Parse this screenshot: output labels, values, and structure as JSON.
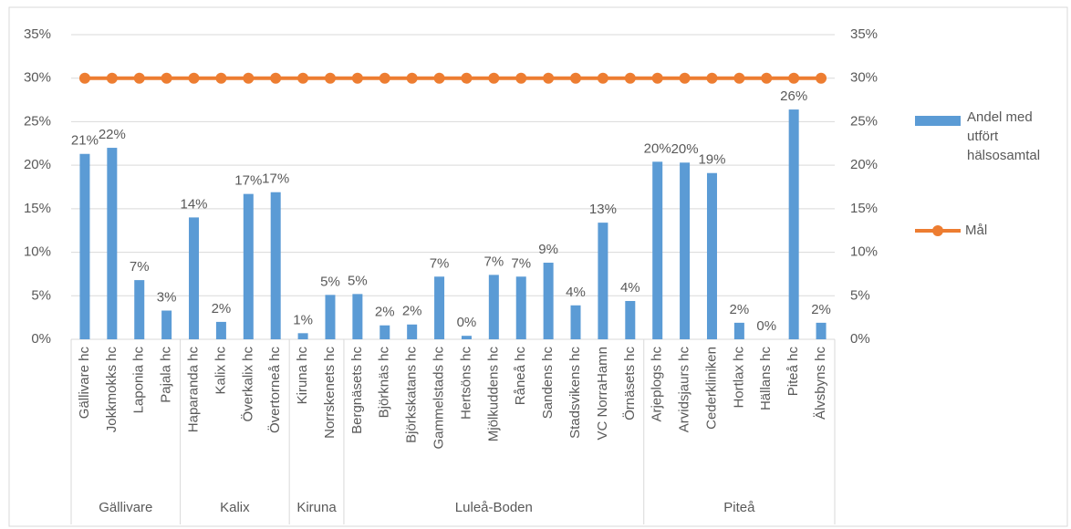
{
  "chart_data": {
    "type": "bar",
    "groups": [
      {
        "name": "Gällivare",
        "categories": [
          "Gällivare hc",
          "Jokkmokks hc",
          "Laponia hc",
          "Pajala hc"
        ]
      },
      {
        "name": "Kalix",
        "categories": [
          "Haparanda hc",
          "Kalix hc",
          "Överkalix hc",
          "Övertorneå hc"
        ]
      },
      {
        "name": "Kiruna",
        "categories": [
          "Kiruna hc",
          "Norrskenets hc"
        ]
      },
      {
        "name": "Luleå-Boden",
        "categories": [
          "Bergnäsets hc",
          "Björknäs hc",
          "Björkskatans hc",
          "Gammelstads hc",
          "Hertsöns hc",
          "Mjölkuddens hc",
          "Råneå hc",
          "Sandens hc",
          "Stadsvikens hc",
          "VC NorraHamn",
          "Örnäsets hc"
        ]
      },
      {
        "name": "Piteå",
        "categories": [
          "Arjeplogs hc",
          "Arvidsjaurs hc",
          "Cederkliniken",
          "Hortlax hc",
          "Hällans hc",
          "Piteå hc",
          "Älvsbyns hc"
        ]
      }
    ],
    "series": [
      {
        "name": "Andel med utfört hälsosamtal",
        "type": "bar",
        "color": "#5b9bd5",
        "values": [
          21.3,
          22,
          6.8,
          3.3,
          14,
          2,
          16.7,
          16.9,
          0.7,
          5.1,
          5.2,
          1.6,
          1.7,
          7.2,
          0.4,
          7.4,
          7.2,
          8.8,
          3.9,
          13.4,
          4.4,
          20.4,
          20.3,
          19.1,
          1.9,
          0,
          26.4,
          1.9
        ],
        "value_labels": [
          "21%",
          "22%",
          "7%",
          "3%",
          "14%",
          "2%",
          "17%",
          "17%",
          "1%",
          "5%",
          "5%",
          "2%",
          "2%",
          "7%",
          "0%",
          "7%",
          "7%",
          "9%",
          "4%",
          "13%",
          "4%",
          "20%",
          "20%",
          "19%",
          "2%",
          "0%",
          "26%",
          "2%"
        ]
      },
      {
        "name": "Mål",
        "type": "line",
        "color": "#ed7d31",
        "axis": "y2",
        "values": [
          30,
          30,
          30,
          30,
          30,
          30,
          30,
          30,
          30,
          30,
          30,
          30,
          30,
          30,
          30,
          30,
          30,
          30,
          30,
          30,
          30,
          30,
          30,
          30,
          30,
          30,
          30,
          30
        ]
      }
    ],
    "ylim": [
      0,
      35
    ],
    "yticks": [
      {
        "value": 0,
        "label": "0%"
      },
      {
        "value": 5,
        "label": "5%"
      },
      {
        "value": 10,
        "label": "10%"
      },
      {
        "value": 15,
        "label": "15%"
      },
      {
        "value": 20,
        "label": "20%"
      },
      {
        "value": 25,
        "label": "25%"
      },
      {
        "value": 30,
        "label": "30%"
      },
      {
        "value": 35,
        "label": "35%"
      }
    ],
    "y2lim": [
      0,
      35
    ],
    "y2ticks": [
      {
        "value": 0,
        "label": "0%"
      },
      {
        "value": 5,
        "label": "5%"
      },
      {
        "value": 10,
        "label": "10%"
      },
      {
        "value": 15,
        "label": "15%"
      },
      {
        "value": 20,
        "label": "20%"
      },
      {
        "value": 25,
        "label": "25%"
      },
      {
        "value": 30,
        "label": "30%"
      },
      {
        "value": 35,
        "label": "35%"
      }
    ],
    "grid": true,
    "legend": "right"
  }
}
